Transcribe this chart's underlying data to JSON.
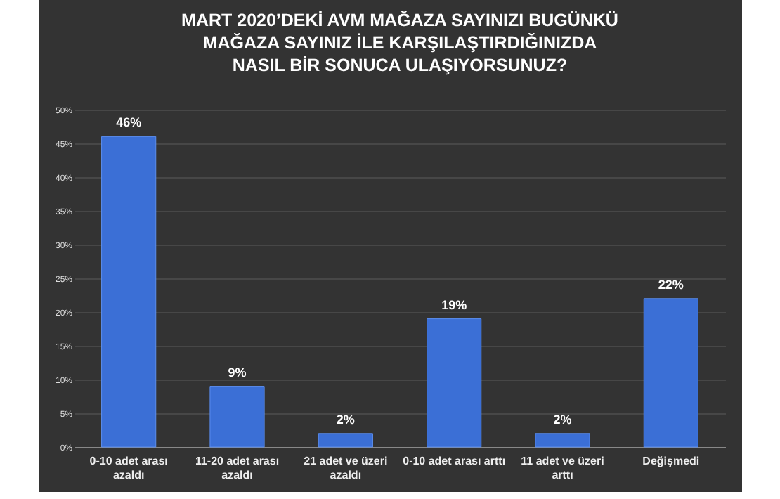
{
  "chart_data": {
    "type": "bar",
    "title": "MART 2020’DEKİ AVM MAĞAZA SAYINIZI BUGÜNKÜ MAĞAZA SAYINIZ İLE KARŞILAŞTIRDIĞINIZDA NASIL BİR SONUCA ULAŞIYORSUNUZ?",
    "categories": [
      "0-10 adet arası azaldı",
      "11-20 adet arası azaldı",
      "21 adet ve üzeri azaldı",
      "0-10 adet arası arttı",
      "11 adet ve üzeri arttı",
      "Değişmedi"
    ],
    "values": [
      46,
      9,
      2,
      19,
      2,
      22
    ],
    "value_labels": [
      "46%",
      "9%",
      "2%",
      "19%",
      "2%",
      "22%"
    ],
    "color": "#3b6fd6",
    "ylim": [
      0,
      50
    ],
    "yticks": [
      {
        "value": 0,
        "label": "0%"
      },
      {
        "value": 5,
        "label": "5%"
      },
      {
        "value": 10,
        "label": "10%"
      },
      {
        "value": 15,
        "label": "15%"
      },
      {
        "value": 20,
        "label": "20%"
      },
      {
        "value": 25,
        "label": "25%"
      },
      {
        "value": 30,
        "label": "30%"
      },
      {
        "value": 35,
        "label": "35%"
      },
      {
        "value": 40,
        "label": "40%"
      },
      {
        "value": 45,
        "label": "45%"
      },
      {
        "value": 50,
        "label": "50%"
      }
    ],
    "grid": true
  }
}
